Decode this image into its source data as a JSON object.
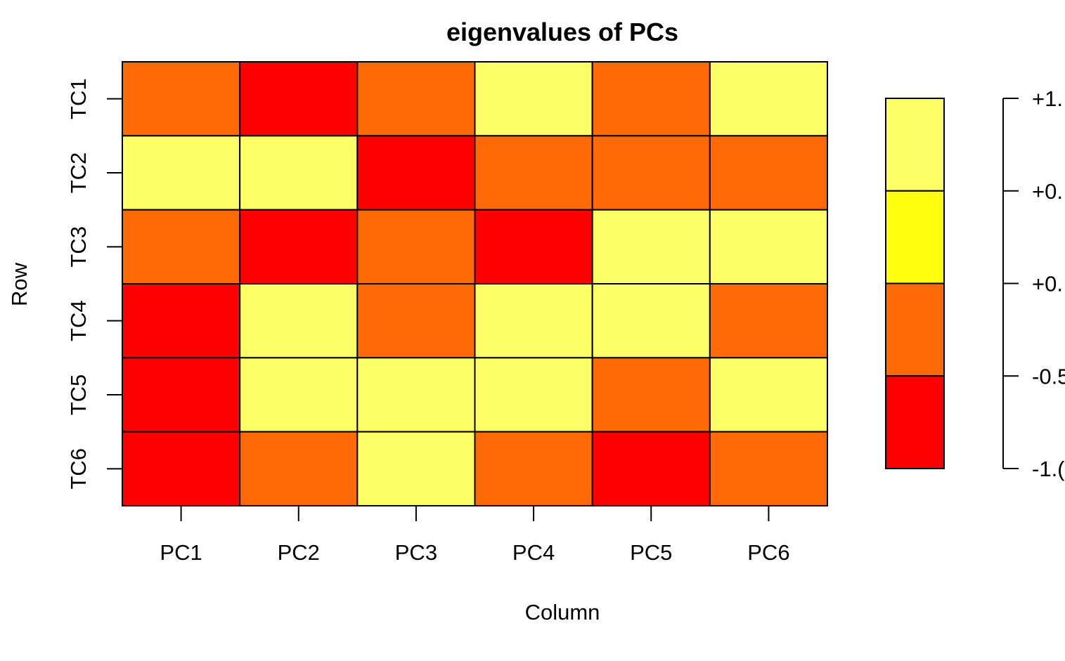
{
  "chart_data": {
    "type": "heatmap",
    "title": "eigenvalues of PCs",
    "xlabel": "Column",
    "ylabel": "Row",
    "columns": [
      "PC1",
      "PC2",
      "PC3",
      "PC4",
      "PC5",
      "PC6"
    ],
    "rows": [
      "TC1",
      "TC2",
      "TC3",
      "TC4",
      "TC5",
      "TC6"
    ],
    "values": [
      [
        -0.5,
        -1.0,
        -0.5,
        1.0,
        -0.5,
        0.5
      ],
      [
        0.5,
        0.5,
        -1.0,
        -0.5,
        -0.5,
        -0.5
      ],
      [
        -0.5,
        -1.0,
        -0.5,
        -1.0,
        0.5,
        0.5
      ],
      [
        -1.0,
        0.5,
        -0.5,
        0.5,
        1.0,
        -0.5
      ],
      [
        -1.0,
        0.5,
        0.5,
        0.5,
        -0.5,
        1.0
      ],
      [
        -1.0,
        -0.5,
        0.5,
        -0.5,
        -1.0,
        -0.5
      ]
    ],
    "color_scale": {
      "bins": [
        {
          "min": -1.0,
          "max": -0.5,
          "color": "#FF0000"
        },
        {
          "min": -0.5,
          "max": 0.0,
          "color": "#FF6A06"
        },
        {
          "min": 0.0,
          "max": 0.5,
          "color": "#FFFF0D"
        },
        {
          "min": 0.5,
          "max": 1.0,
          "color": "#FFFF66"
        }
      ],
      "tick_labels": [
        "+1.",
        "+0.",
        "+0.",
        "-0.5",
        "-1.("
      ],
      "range": [
        -1.0,
        1.0
      ]
    },
    "grid": true,
    "legend_position": "right"
  }
}
